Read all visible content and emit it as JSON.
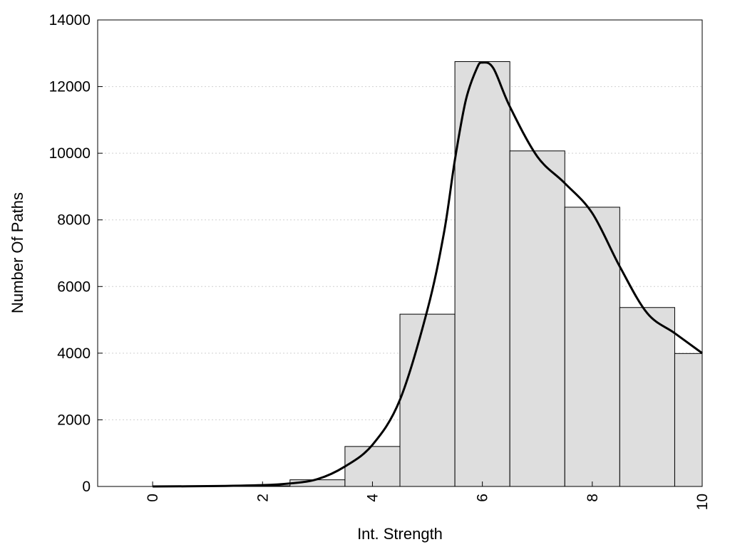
{
  "chart_data": {
    "type": "bar",
    "xlabel": "Int. Strength",
    "ylabel": "Number Of Paths",
    "xlim": [
      -1,
      10
    ],
    "ylim": [
      0,
      14000
    ],
    "xticks": [
      "0",
      "2",
      "4",
      "6",
      "8",
      "10"
    ],
    "yticks": [
      "0",
      "2000",
      "4000",
      "6000",
      "8000",
      "10000",
      "12000",
      "14000"
    ],
    "grid": "horizontal dotted",
    "bars": [
      {
        "x": 0,
        "value": 0
      },
      {
        "x": 1,
        "value": 10
      },
      {
        "x": 2,
        "value": 20
      },
      {
        "x": 3,
        "value": 200
      },
      {
        "x": 4,
        "value": 1200
      },
      {
        "x": 5,
        "value": 5170
      },
      {
        "x": 6,
        "value": 12750
      },
      {
        "x": 7,
        "value": 10070
      },
      {
        "x": 8,
        "value": 8380
      },
      {
        "x": 9,
        "value": 5370
      },
      {
        "x": 10,
        "value": 3990
      }
    ],
    "density_curve": [
      [
        0,
        0
      ],
      [
        1,
        10
      ],
      [
        2,
        40
      ],
      [
        2.5,
        90
      ],
      [
        3,
        220
      ],
      [
        3.5,
        600
      ],
      [
        4,
        1250
      ],
      [
        4.5,
        2600
      ],
      [
        5,
        5300
      ],
      [
        5.3,
        7600
      ],
      [
        5.5,
        9800
      ],
      [
        5.7,
        11600
      ],
      [
        5.9,
        12550
      ],
      [
        6,
        12720
      ],
      [
        6.2,
        12550
      ],
      [
        6.5,
        11400
      ],
      [
        7,
        9900
      ],
      [
        7.5,
        9100
      ],
      [
        8,
        8200
      ],
      [
        8.5,
        6600
      ],
      [
        9,
        5200
      ],
      [
        9.5,
        4600
      ],
      [
        10,
        4000
      ]
    ]
  }
}
